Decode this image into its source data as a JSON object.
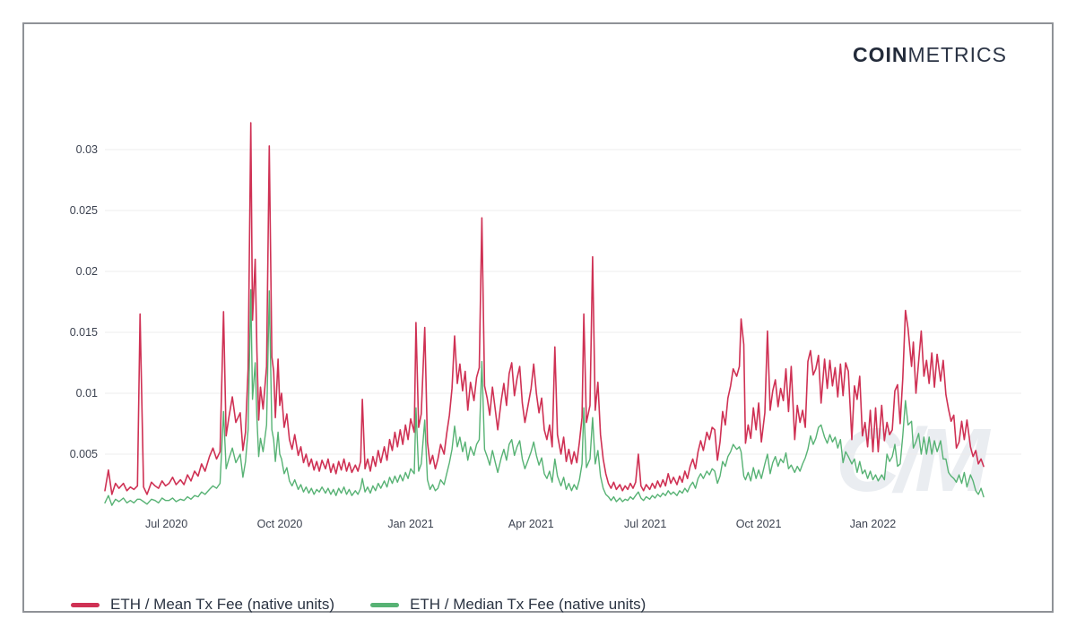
{
  "header": {
    "logo_bold": "COIN",
    "logo_light": "METRICS",
    "logo_color": "#232b3a"
  },
  "watermark": {
    "text": "C/M"
  },
  "colors": {
    "mean_line": "#cf3154",
    "median_line": "#57b274",
    "gridline": "#ececec"
  },
  "legend": {
    "items": [
      {
        "label": "ETH / Mean Tx Fee (native units)",
        "color": "#cf3154"
      },
      {
        "label": "ETH / Median Tx Fee (native units)",
        "color": "#57b274"
      }
    ]
  },
  "chart_data": {
    "type": "line",
    "title": "",
    "xlabel": "",
    "ylabel": "",
    "grid": "horizontal",
    "legend_position": "bottom-left",
    "ylim": [
      0,
      0.032
    ],
    "value_multiplier": 0.001,
    "y_axis": {
      "ticks": [
        {
          "label": "0.005",
          "v": 5
        },
        {
          "label": "0.01",
          "v": 10
        },
        {
          "label": "0.015",
          "v": 15
        },
        {
          "label": "0.02",
          "v": 20
        },
        {
          "label": "0.025",
          "v": 25
        },
        {
          "label": "0.03",
          "v": 30
        }
      ]
    },
    "x_axis": {
      "ticks": [
        {
          "label": "Jul 2020",
          "t": 7.0
        },
        {
          "label": "Oct 2020",
          "t": 19.9
        },
        {
          "label": "Jan 2021",
          "t": 34.8
        },
        {
          "label": "Apr 2021",
          "t": 48.5
        },
        {
          "label": "Jul 2021",
          "t": 61.5
        },
        {
          "label": "Oct 2021",
          "t": 74.4
        },
        {
          "label": "Jan 2022",
          "t": 87.4
        }
      ]
    },
    "series_meta": [
      {
        "name": "ETH / Mean Tx Fee (native units)",
        "color": "#cf3154",
        "column": 1
      },
      {
        "name": "ETH / Median Tx Fee (native units)",
        "color": "#57b274",
        "column": 2
      }
    ],
    "columns": [
      "t_percent_of_x_axis",
      "mean_fee_x0.001_ETH",
      "median_fee_x0.001_ETH"
    ],
    "points": [
      [
        0,
        2.0,
        1.0
      ],
      [
        0.4,
        3.7,
        1.6
      ],
      [
        0.8,
        1.7,
        0.8
      ],
      [
        1.2,
        2.6,
        1.3
      ],
      [
        1.6,
        2.2,
        1.1
      ],
      [
        2.1,
        2.6,
        1.4
      ],
      [
        2.5,
        2.0,
        1.0
      ],
      [
        2.9,
        2.3,
        1.2
      ],
      [
        3.3,
        2.1,
        1.0
      ],
      [
        3.7,
        2.4,
        1.3
      ],
      [
        4.0,
        16.5,
        1.3
      ],
      [
        4.4,
        2.3,
        1.1
      ],
      [
        4.8,
        1.7,
        0.9
      ],
      [
        5.3,
        2.7,
        1.3
      ],
      [
        5.7,
        2.4,
        1.2
      ],
      [
        6.1,
        2.2,
        1.0
      ],
      [
        6.5,
        2.8,
        1.4
      ],
      [
        6.9,
        2.4,
        1.2
      ],
      [
        7.3,
        2.6,
        1.2
      ],
      [
        7.7,
        3.1,
        1.4
      ],
      [
        8.1,
        2.5,
        1.1
      ],
      [
        8.6,
        2.9,
        1.3
      ],
      [
        9.0,
        2.5,
        1.2
      ],
      [
        9.4,
        3.3,
        1.5
      ],
      [
        9.8,
        2.8,
        1.3
      ],
      [
        10.2,
        3.6,
        1.6
      ],
      [
        10.6,
        3.2,
        1.5
      ],
      [
        11.0,
        4.2,
        1.9
      ],
      [
        11.4,
        3.6,
        1.7
      ],
      [
        11.9,
        4.8,
        2.1
      ],
      [
        12.3,
        5.5,
        2.4
      ],
      [
        12.7,
        4.6,
        2.2
      ],
      [
        13.1,
        5.2,
        2.6
      ],
      [
        13.5,
        16.7,
        8.5
      ],
      [
        13.8,
        6.5,
        3.8
      ],
      [
        14.1,
        8.0,
        4.6
      ],
      [
        14.5,
        9.7,
        5.5
      ],
      [
        14.9,
        7.6,
        4.3
      ],
      [
        15.4,
        8.4,
        5.0
      ],
      [
        15.7,
        5.3,
        3.1
      ],
      [
        16.0,
        6.8,
        4.4
      ],
      [
        16.3,
        12.0,
        7.0
      ],
      [
        16.6,
        32.2,
        18.5
      ],
      [
        16.8,
        16.0,
        9.5
      ],
      [
        17.1,
        21.0,
        12.5
      ],
      [
        17.3,
        13.5,
        8.0
      ],
      [
        17.5,
        7.8,
        4.8
      ],
      [
        17.7,
        10.5,
        6.3
      ],
      [
        18.0,
        8.7,
        5.2
      ],
      [
        18.4,
        12.2,
        7.4
      ],
      [
        18.7,
        30.3,
        18.4
      ],
      [
        19.0,
        13.0,
        7.0
      ],
      [
        19.2,
        11.8,
        6.2
      ],
      [
        19.4,
        8.0,
        4.4
      ],
      [
        19.7,
        12.8,
        6.8
      ],
      [
        19.9,
        9.0,
        5.0
      ],
      [
        20.1,
        10.0,
        4.6
      ],
      [
        20.4,
        7.2,
        3.4
      ],
      [
        20.7,
        8.3,
        3.9
      ],
      [
        21.0,
        6.2,
        2.8
      ],
      [
        21.3,
        5.4,
        2.4
      ],
      [
        21.6,
        6.6,
        2.9
      ],
      [
        22.0,
        4.9,
        2.1
      ],
      [
        22.3,
        5.6,
        2.5
      ],
      [
        22.6,
        4.3,
        1.9
      ],
      [
        22.9,
        5.0,
        2.3
      ],
      [
        23.2,
        4.0,
        1.8
      ],
      [
        23.5,
        4.6,
        2.2
      ],
      [
        23.8,
        3.7,
        1.7
      ],
      [
        24.1,
        4.4,
        2.1
      ],
      [
        24.4,
        3.6,
        1.9
      ],
      [
        24.7,
        4.5,
        2.3
      ],
      [
        25.1,
        3.8,
        1.8
      ],
      [
        25.4,
        4.6,
        2.2
      ],
      [
        25.7,
        3.5,
        1.7
      ],
      [
        26.0,
        4.2,
        2.1
      ],
      [
        26.3,
        3.4,
        1.6
      ],
      [
        26.6,
        4.4,
        2.2
      ],
      [
        26.9,
        3.7,
        1.8
      ],
      [
        27.2,
        4.6,
        2.3
      ],
      [
        27.5,
        3.6,
        1.7
      ],
      [
        27.8,
        4.3,
        2.1
      ],
      [
        28.1,
        3.5,
        1.6
      ],
      [
        28.5,
        4.1,
        2.0
      ],
      [
        28.8,
        3.6,
        1.7
      ],
      [
        29.1,
        4.4,
        2.2
      ],
      [
        29.3,
        9.5,
        3.0
      ],
      [
        29.6,
        3.8,
        1.9
      ],
      [
        29.9,
        4.6,
        2.3
      ],
      [
        30.2,
        3.6,
        1.8
      ],
      [
        30.5,
        4.8,
        2.4
      ],
      [
        30.8,
        4.0,
        2.0
      ],
      [
        31.1,
        5.3,
        2.6
      ],
      [
        31.4,
        4.3,
        2.2
      ],
      [
        31.8,
        5.6,
        2.8
      ],
      [
        32.1,
        4.5,
        2.3
      ],
      [
        32.4,
        6.2,
        3.1
      ],
      [
        32.7,
        5.3,
        2.6
      ],
      [
        33.0,
        6.8,
        3.2
      ],
      [
        33.3,
        5.6,
        2.7
      ],
      [
        33.6,
        7.0,
        3.3
      ],
      [
        33.9,
        5.8,
        2.8
      ],
      [
        34.2,
        7.4,
        3.5
      ],
      [
        34.5,
        6.2,
        3.0
      ],
      [
        34.8,
        7.9,
        3.8
      ],
      [
        35.2,
        6.8,
        3.4
      ],
      [
        35.4,
        15.8,
        8.8
      ],
      [
        35.7,
        7.2,
        3.6
      ],
      [
        36.0,
        8.3,
        4.2
      ],
      [
        36.4,
        15.4,
        7.8
      ],
      [
        36.7,
        6.0,
        2.9
      ],
      [
        37.0,
        4.2,
        2.1
      ],
      [
        37.3,
        4.9,
        2.5
      ],
      [
        37.6,
        3.8,
        2.0
      ],
      [
        37.9,
        4.6,
        2.2
      ],
      [
        38.2,
        5.8,
        2.9
      ],
      [
        38.6,
        5.0,
        2.5
      ],
      [
        38.9,
        6.7,
        3.4
      ],
      [
        39.2,
        8.2,
        4.3
      ],
      [
        39.5,
        10.4,
        5.4
      ],
      [
        39.8,
        14.7,
        7.3
      ],
      [
        40.1,
        10.8,
        5.6
      ],
      [
        40.4,
        12.4,
        6.4
      ],
      [
        40.7,
        10.2,
        5.2
      ],
      [
        41.0,
        11.8,
        6.0
      ],
      [
        41.3,
        8.6,
        4.5
      ],
      [
        41.6,
        10.9,
        5.6
      ],
      [
        42.0,
        9.4,
        4.9
      ],
      [
        42.3,
        11.3,
        5.8
      ],
      [
        42.6,
        12.1,
        6.2
      ],
      [
        42.9,
        24.4,
        12.6
      ],
      [
        43.2,
        10.6,
        5.4
      ],
      [
        43.5,
        9.6,
        4.8
      ],
      [
        43.8,
        8.2,
        4.1
      ],
      [
        44.1,
        10.5,
        5.3
      ],
      [
        44.4,
        8.8,
        4.4
      ],
      [
        44.7,
        7.0,
        3.5
      ],
      [
        45.1,
        9.4,
        4.7
      ],
      [
        45.4,
        10.8,
        5.4
      ],
      [
        45.7,
        9.0,
        4.5
      ],
      [
        46.0,
        11.6,
        5.8
      ],
      [
        46.3,
        12.5,
        6.2
      ],
      [
        46.6,
        9.8,
        4.9
      ],
      [
        46.9,
        11.2,
        5.6
      ],
      [
        47.2,
        12.2,
        6.1
      ],
      [
        47.5,
        9.2,
        4.6
      ],
      [
        47.8,
        7.6,
        3.8
      ],
      [
        48.1,
        8.8,
        4.4
      ],
      [
        48.5,
        10.4,
        5.2
      ],
      [
        48.8,
        12.4,
        6.0
      ],
      [
        49.1,
        10.0,
        4.9
      ],
      [
        49.4,
        8.4,
        4.1
      ],
      [
        49.7,
        9.6,
        4.7
      ],
      [
        50.0,
        7.0,
        3.4
      ],
      [
        50.3,
        6.2,
        3.0
      ],
      [
        50.6,
        7.4,
        3.6
      ],
      [
        50.9,
        5.6,
        2.7
      ],
      [
        51.2,
        13.8,
        4.6
      ],
      [
        51.5,
        6.6,
        3.2
      ],
      [
        51.9,
        5.0,
        2.4
      ],
      [
        52.2,
        6.4,
        3.1
      ],
      [
        52.5,
        4.4,
        2.1
      ],
      [
        52.8,
        5.4,
        2.6
      ],
      [
        53.1,
        4.2,
        2.0
      ],
      [
        53.4,
        5.2,
        2.5
      ],
      [
        53.7,
        4.3,
        2.1
      ],
      [
        54.0,
        6.0,
        2.9
      ],
      [
        54.3,
        8.0,
        4.2
      ],
      [
        54.5,
        16.5,
        8.8
      ],
      [
        54.8,
        7.6,
        3.9
      ],
      [
        55.2,
        9.0,
        4.6
      ],
      [
        55.5,
        21.2,
        8.0
      ],
      [
        55.8,
        8.6,
        4.2
      ],
      [
        56.1,
        10.9,
        5.3
      ],
      [
        56.4,
        6.6,
        3.2
      ],
      [
        56.7,
        4.6,
        2.2
      ],
      [
        57.0,
        3.4,
        1.7
      ],
      [
        57.3,
        2.6,
        1.5
      ],
      [
        57.6,
        2.2,
        1.2
      ],
      [
        57.9,
        2.7,
        1.5
      ],
      [
        58.2,
        2.1,
        1.1
      ],
      [
        58.6,
        2.5,
        1.4
      ],
      [
        58.9,
        2.0,
        1.1
      ],
      [
        59.2,
        2.4,
        1.3
      ],
      [
        59.5,
        2.1,
        1.2
      ],
      [
        59.8,
        2.6,
        1.5
      ],
      [
        60.1,
        2.2,
        1.3
      ],
      [
        60.4,
        2.7,
        1.6
      ],
      [
        60.7,
        5.0,
        1.9
      ],
      [
        61.0,
        2.4,
        1.4
      ],
      [
        61.3,
        2.0,
        1.2
      ],
      [
        61.6,
        2.5,
        1.5
      ],
      [
        62.0,
        2.1,
        1.3
      ],
      [
        62.3,
        2.6,
        1.6
      ],
      [
        62.6,
        2.2,
        1.4
      ],
      [
        62.9,
        2.8,
        1.7
      ],
      [
        63.2,
        2.3,
        1.5
      ],
      [
        63.5,
        2.9,
        1.8
      ],
      [
        63.8,
        2.4,
        1.6
      ],
      [
        64.1,
        3.4,
        2.0
      ],
      [
        64.4,
        2.6,
        1.7
      ],
      [
        64.7,
        3.1,
        1.9
      ],
      [
        65.1,
        2.5,
        1.6
      ],
      [
        65.4,
        3.2,
        2.0
      ],
      [
        65.7,
        2.7,
        1.8
      ],
      [
        66.0,
        3.6,
        2.2
      ],
      [
        66.3,
        3.0,
        1.9
      ],
      [
        66.6,
        4.0,
        2.4
      ],
      [
        66.9,
        4.6,
        2.7
      ],
      [
        67.2,
        3.8,
        2.2
      ],
      [
        67.5,
        5.2,
        3.0
      ],
      [
        67.8,
        6.1,
        3.4
      ],
      [
        68.1,
        5.3,
        3.0
      ],
      [
        68.5,
        6.8,
        3.6
      ],
      [
        68.8,
        6.2,
        3.3
      ],
      [
        69.1,
        7.2,
        3.8
      ],
      [
        69.4,
        7.0,
        3.6
      ],
      [
        69.7,
        4.5,
        2.6
      ],
      [
        70.0,
        6.0,
        3.2
      ],
      [
        70.3,
        8.5,
        4.4
      ],
      [
        70.6,
        7.4,
        4.0
      ],
      [
        70.9,
        9.6,
        4.8
      ],
      [
        71.2,
        10.6,
        5.2
      ],
      [
        71.5,
        12.0,
        5.8
      ],
      [
        71.9,
        11.4,
        5.4
      ],
      [
        72.2,
        12.2,
        5.6
      ],
      [
        72.4,
        16.1,
        5.2
      ],
      [
        72.7,
        14.0,
        3.2
      ],
      [
        72.9,
        5.9,
        2.9
      ],
      [
        73.2,
        7.4,
        3.5
      ],
      [
        73.5,
        6.3,
        2.8
      ],
      [
        73.8,
        8.8,
        3.9
      ],
      [
        74.1,
        7.0,
        3.0
      ],
      [
        74.4,
        9.2,
        3.7
      ],
      [
        74.7,
        6.0,
        3.0
      ],
      [
        75.1,
        8.4,
        4.2
      ],
      [
        75.4,
        15.1,
        5.0
      ],
      [
        75.7,
        8.6,
        3.4
      ],
      [
        76.0,
        10.2,
        4.3
      ],
      [
        76.3,
        11.1,
        4.8
      ],
      [
        76.6,
        8.9,
        4.0
      ],
      [
        76.9,
        10.4,
        4.6
      ],
      [
        77.2,
        9.4,
        4.3
      ],
      [
        77.5,
        12.0,
        5.1
      ],
      [
        77.8,
        8.5,
        3.8
      ],
      [
        78.1,
        12.2,
        4.1
      ],
      [
        78.5,
        6.2,
        3.5
      ],
      [
        78.8,
        9.0,
        4.0
      ],
      [
        79.1,
        7.6,
        3.6
      ],
      [
        79.4,
        8.6,
        4.2
      ],
      [
        79.7,
        7.2,
        4.7
      ],
      [
        80.0,
        12.6,
        5.4
      ],
      [
        80.3,
        13.5,
        6.5
      ],
      [
        80.6,
        11.5,
        5.8
      ],
      [
        80.9,
        12.0,
        6.3
      ],
      [
        81.2,
        13.1,
        7.2
      ],
      [
        81.5,
        9.2,
        7.4
      ],
      [
        81.9,
        12.8,
        6.4
      ],
      [
        82.2,
        10.4,
        5.9
      ],
      [
        82.5,
        12.7,
        6.6
      ],
      [
        82.8,
        10.6,
        6.0
      ],
      [
        83.1,
        12.1,
        6.4
      ],
      [
        83.4,
        9.7,
        5.5
      ],
      [
        83.7,
        12.4,
        6.2
      ],
      [
        84.0,
        9.8,
        4.3
      ],
      [
        84.3,
        12.5,
        5.2
      ],
      [
        84.6,
        11.8,
        4.8
      ],
      [
        85.0,
        6.2,
        4.2
      ],
      [
        85.3,
        10.6,
        4.6
      ],
      [
        85.6,
        9.5,
        3.5
      ],
      [
        85.9,
        11.4,
        4.4
      ],
      [
        86.2,
        6.5,
        3.4
      ],
      [
        86.5,
        7.6,
        3.7
      ],
      [
        86.8,
        5.6,
        3.0
      ],
      [
        87.1,
        8.6,
        3.6
      ],
      [
        87.4,
        5.2,
        2.9
      ],
      [
        87.7,
        8.8,
        3.3
      ],
      [
        88.0,
        5.2,
        2.8
      ],
      [
        88.4,
        9.0,
        3.3
      ],
      [
        88.7,
        6.1,
        2.9
      ],
      [
        89.0,
        7.6,
        5.0
      ],
      [
        89.3,
        6.6,
        4.4
      ],
      [
        89.6,
        7.0,
        4.8
      ],
      [
        89.9,
        10.2,
        5.8
      ],
      [
        90.2,
        10.7,
        4.0
      ],
      [
        90.5,
        7.5,
        4.2
      ],
      [
        90.8,
        11.2,
        6.5
      ],
      [
        91.1,
        16.8,
        9.4
      ],
      [
        91.4,
        15.3,
        7.4
      ],
      [
        91.8,
        12.2,
        7.7
      ],
      [
        92.0,
        14.2,
        5.5
      ],
      [
        92.3,
        10.0,
        6.0
      ],
      [
        92.6,
        12.6,
        6.7
      ],
      [
        92.9,
        15.1,
        5.0
      ],
      [
        93.2,
        11.4,
        6.4
      ],
      [
        93.5,
        12.7,
        5.0
      ],
      [
        93.8,
        10.8,
        6.4
      ],
      [
        94.1,
        13.3,
        5.0
      ],
      [
        94.4,
        10.5,
        6.1
      ],
      [
        94.7,
        13.2,
        5.2
      ],
      [
        95.1,
        11.0,
        6.1
      ],
      [
        95.4,
        12.7,
        4.6
      ],
      [
        95.7,
        9.9,
        4.6
      ],
      [
        96.0,
        8.7,
        3.5
      ],
      [
        96.3,
        7.7,
        3.2
      ],
      [
        96.6,
        8.2,
        3.0
      ],
      [
        96.9,
        5.5,
        2.7
      ],
      [
        97.2,
        6.0,
        3.3
      ],
      [
        97.5,
        7.7,
        2.6
      ],
      [
        97.8,
        6.2,
        3.5
      ],
      [
        98.1,
        7.8,
        2.3
      ],
      [
        98.5,
        5.6,
        3.3
      ],
      [
        98.8,
        4.8,
        2.8
      ],
      [
        99.1,
        5.3,
        2.0
      ],
      [
        99.4,
        4.2,
        1.7
      ],
      [
        99.7,
        4.6,
        2.2
      ],
      [
        100,
        4.0,
        1.5
      ]
    ]
  }
}
